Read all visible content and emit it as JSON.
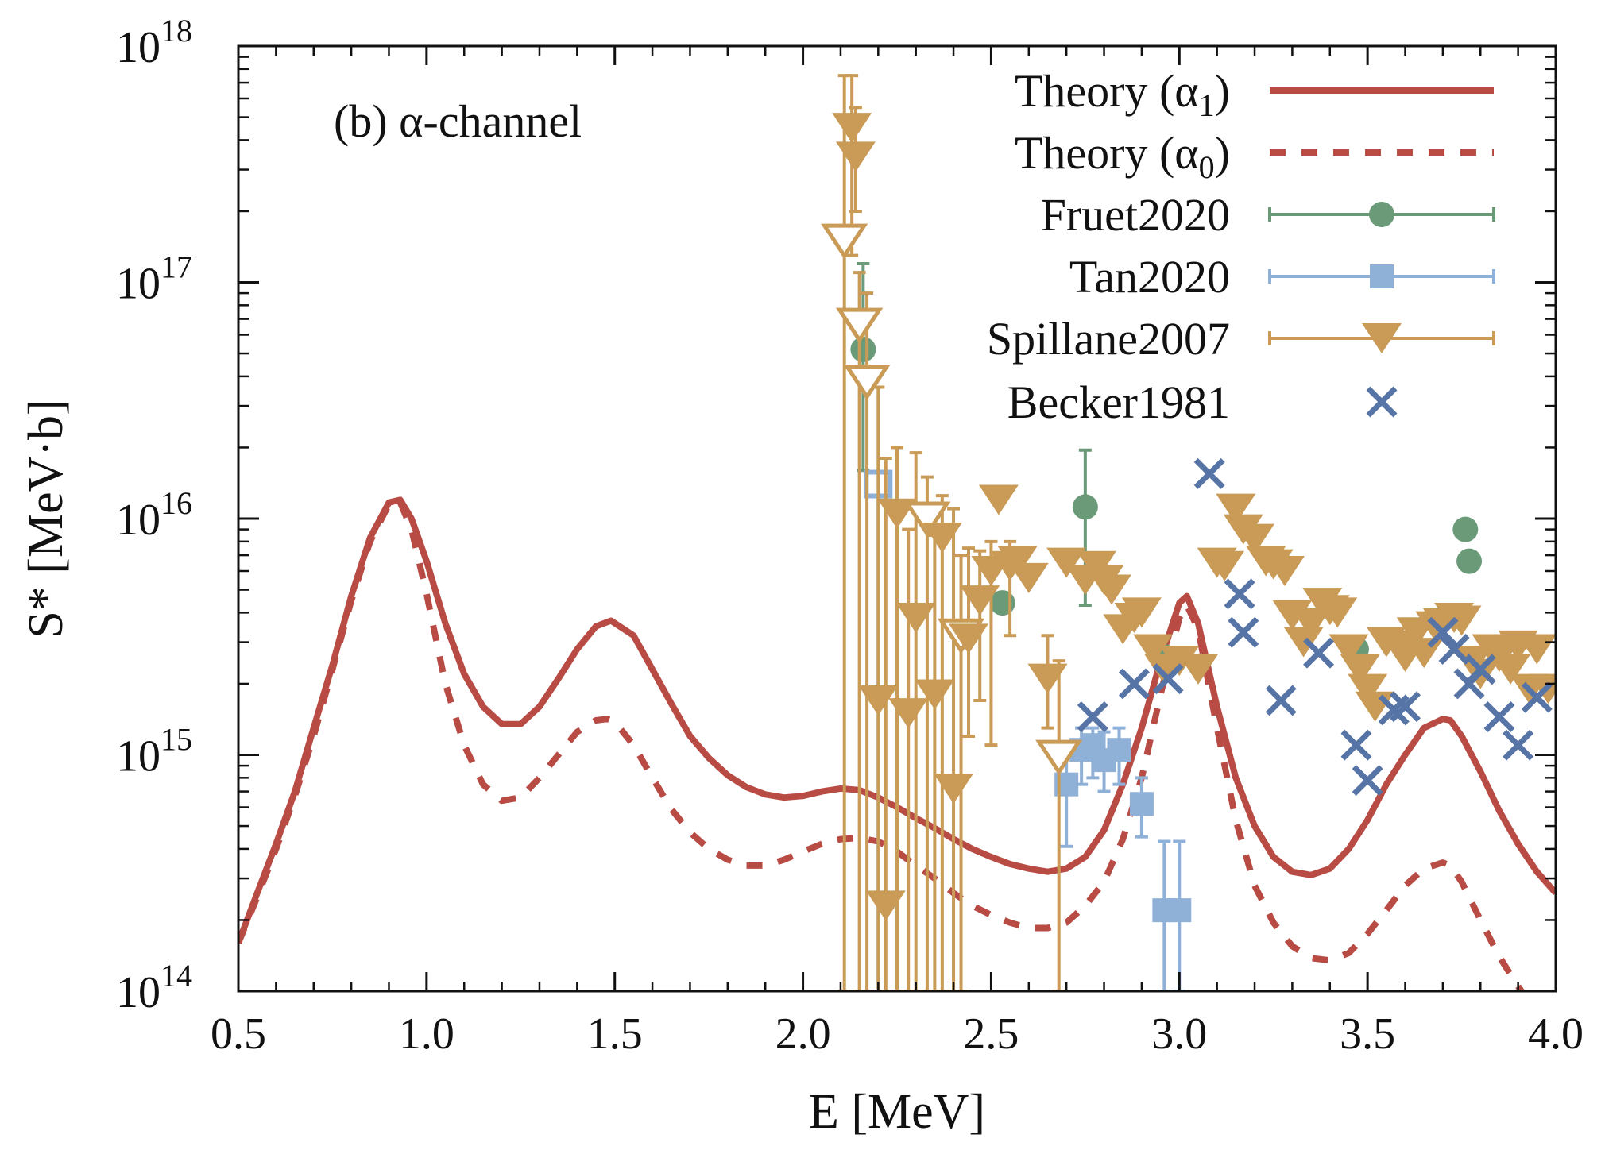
{
  "chart_data": {
    "type": "scatter",
    "annotation": "(b) α-channel",
    "xlabel": "E  [MeV]",
    "ylabel": "S* [MeV·b]",
    "xlim": [
      0.5,
      4.0
    ],
    "ylim": [
      100000000000000.0,
      1e+18
    ],
    "yscale": "log",
    "grid": false,
    "legend_position": "top-right",
    "x_ticks": [
      "0.5",
      "1.0",
      "1.5",
      "2.0",
      "2.5",
      "3.0",
      "3.5",
      "4.0"
    ],
    "y_ticks": [
      {
        "base": "10",
        "exp": "14",
        "value": 100000000000000.0
      },
      {
        "base": "10",
        "exp": "15",
        "value": 1000000000000000.0
      },
      {
        "base": "10",
        "exp": "16",
        "value": 1e+16
      },
      {
        "base": "10",
        "exp": "17",
        "value": 1e+17
      },
      {
        "base": "10",
        "exp": "18",
        "value": 1e+18
      }
    ],
    "colors": {
      "theory": "#b84b44",
      "fruet": "#6b9a78",
      "tan": "#8fb1d8",
      "spillane": "#c99b57",
      "becker": "#5674a6"
    },
    "series": [
      {
        "name": "Theory  (α",
        "sub": "1",
        "kind": "line",
        "style": "solid",
        "x": [
          0.5,
          0.55,
          0.6,
          0.65,
          0.7,
          0.75,
          0.8,
          0.85,
          0.9,
          0.93,
          0.96,
          1.0,
          1.05,
          1.1,
          1.15,
          1.2,
          1.25,
          1.3,
          1.35,
          1.4,
          1.45,
          1.49,
          1.55,
          1.6,
          1.65,
          1.7,
          1.75,
          1.8,
          1.85,
          1.9,
          1.95,
          2.0,
          2.05,
          2.1,
          2.15,
          2.2,
          2.25,
          2.3,
          2.35,
          2.4,
          2.45,
          2.5,
          2.55,
          2.6,
          2.65,
          2.7,
          2.75,
          2.8,
          2.85,
          2.9,
          2.95,
          3.0,
          3.02,
          3.05,
          3.1,
          3.15,
          3.2,
          3.25,
          3.3,
          3.35,
          3.4,
          3.45,
          3.5,
          3.55,
          3.6,
          3.65,
          3.7,
          3.72,
          3.75,
          3.8,
          3.85,
          3.9,
          3.95,
          4.0
        ],
        "y": [
          160000000000000.0,
          260000000000000.0,
          420000000000000.0,
          700000000000000.0,
          1300000000000000.0,
          2400000000000000.0,
          4700000000000000.0,
          8300000000000000.0,
          1.17e+16,
          1.2e+16,
          1e+16,
          6600000000000000.0,
          3600000000000000.0,
          2200000000000000.0,
          1600000000000000.0,
          1350000000000000.0,
          1350000000000000.0,
          1600000000000000.0,
          2100000000000000.0,
          2800000000000000.0,
          3500000000000000.0,
          3700000000000000.0,
          3200000000000000.0,
          2300000000000000.0,
          1650000000000000.0,
          1200000000000000.0,
          970000000000000.0,
          820000000000000.0,
          730000000000000.0,
          680000000000000.0,
          660000000000000.0,
          670000000000000.0,
          700000000000000.0,
          720000000000000.0,
          710000000000000.0,
          660000000000000.0,
          600000000000000.0,
          540000000000000.0,
          490000000000000.0,
          440000000000000.0,
          400000000000000.0,
          370000000000000.0,
          345000000000000.0,
          330000000000000.0,
          320000000000000.0,
          330000000000000.0,
          370000000000000.0,
          480000000000000.0,
          750000000000000.0,
          1300000000000000.0,
          2500000000000000.0,
          4400000000000000.0,
          4700000000000000.0,
          3600000000000000.0,
          1600000000000000.0,
          800000000000000.0,
          500000000000000.0,
          370000000000000.0,
          320000000000000.0,
          310000000000000.0,
          330000000000000.0,
          400000000000000.0,
          530000000000000.0,
          750000000000000.0,
          1000000000000000.0,
          1300000000000000.0,
          1420000000000000.0,
          1400000000000000.0,
          1200000000000000.0,
          850000000000000.0,
          580000000000000.0,
          420000000000000.0,
          320000000000000.0,
          260000000000000.0
        ]
      },
      {
        "name": "Theory  (α",
        "sub": "0",
        "kind": "line",
        "style": "dashed",
        "x": [
          0.5,
          0.55,
          0.6,
          0.65,
          0.7,
          0.75,
          0.8,
          0.85,
          0.9,
          0.93,
          0.96,
          1.0,
          1.05,
          1.1,
          1.15,
          1.2,
          1.25,
          1.3,
          1.35,
          1.4,
          1.45,
          1.48,
          1.5,
          1.55,
          1.6,
          1.65,
          1.7,
          1.75,
          1.8,
          1.85,
          1.9,
          1.95,
          2.0,
          2.05,
          2.1,
          2.15,
          2.2,
          2.25,
          2.3,
          2.35,
          2.4,
          2.45,
          2.5,
          2.55,
          2.6,
          2.65,
          2.7,
          2.75,
          2.8,
          2.85,
          2.9,
          2.95,
          3.0,
          3.02,
          3.05,
          3.1,
          3.15,
          3.2,
          3.25,
          3.3,
          3.35,
          3.4,
          3.45,
          3.5,
          3.55,
          3.6,
          3.65,
          3.7,
          3.72,
          3.75,
          3.8,
          3.85,
          3.9,
          3.95
        ],
        "y": [
          160000000000000.0,
          250000000000000.0,
          400000000000000.0,
          670000000000000.0,
          1200000000000000.0,
          2300000000000000.0,
          4500000000000000.0,
          8000000000000000.0,
          1.15e+16,
          1.17e+16,
          9000000000000000.0,
          4800000000000000.0,
          2000000000000000.0,
          1100000000000000.0,
          750000000000000.0,
          640000000000000.0,
          660000000000000.0,
          800000000000000.0,
          1000000000000000.0,
          1250000000000000.0,
          1400000000000000.0,
          1420000000000000.0,
          1380000000000000.0,
          1100000000000000.0,
          800000000000000.0,
          590000000000000.0,
          470000000000000.0,
          400000000000000.0,
          360000000000000.0,
          340000000000000.0,
          340000000000000.0,
          360000000000000.0,
          390000000000000.0,
          420000000000000.0,
          440000000000000.0,
          445000000000000.0,
          430000000000000.0,
          390000000000000.0,
          340000000000000.0,
          300000000000000.0,
          260000000000000.0,
          230000000000000.0,
          210000000000000.0,
          195000000000000.0,
          185000000000000.0,
          185000000000000.0,
          195000000000000.0,
          230000000000000.0,
          290000000000000.0,
          440000000000000.0,
          800000000000000.0,
          1800000000000000.0,
          3800000000000000.0,
          4300000000000000.0,
          3400000000000000.0,
          1300000000000000.0,
          530000000000000.0,
          280000000000000.0,
          195000000000000.0,
          155000000000000.0,
          138000000000000.0,
          135000000000000.0,
          145000000000000.0,
          175000000000000.0,
          220000000000000.0,
          280000000000000.0,
          330000000000000.0,
          350000000000000.0,
          340000000000000.0,
          290000000000000.0,
          200000000000000.0,
          140000000000000.0,
          105000000000000.0,
          80000000000000.0
        ]
      },
      {
        "name": "Fruet2020",
        "kind": "errorbar",
        "marker": "circle",
        "x": [
          2.16,
          2.53,
          2.75,
          2.96,
          3.47,
          3.76,
          3.77
        ],
        "y": [
          5.2e+16,
          4400000000000000.0,
          1.12e+16,
          2600000000000000.0,
          2800000000000000.0,
          9000000000000000.0,
          6600000000000000.0
        ],
        "err_lo": [
          1.6e+16,
          null,
          4300000000000000.0,
          null,
          null,
          null,
          null
        ],
        "err_hi": [
          1.2e+17,
          null,
          1.95e+16,
          null,
          null,
          null,
          null
        ]
      },
      {
        "name": "Tan2020",
        "kind": "errorbar",
        "marker": "square",
        "x": [
          2.2,
          2.7,
          2.74,
          2.77,
          2.8,
          2.84,
          2.9,
          2.96,
          3.0
        ],
        "y": [
          1.4e+16,
          750000000000000.0,
          1050000000000000.0,
          1100000000000000.0,
          950000000000000.0,
          1050000000000000.0,
          620000000000000.0,
          220000000000000.0,
          220000000000000.0
        ],
        "open": [
          true,
          false,
          false,
          false,
          false,
          false,
          false,
          false,
          false
        ],
        "err_lo": [
          100000000000000.0,
          410000000000000.0,
          750000000000000.0,
          800000000000000.0,
          700000000000000.0,
          750000000000000.0,
          450000000000000.0,
          100000000000000.0,
          100000000000000.0
        ],
        "err_hi": [
          1.4e+16,
          1000000000000000.0,
          1300000000000000.0,
          1300000000000000.0,
          1250000000000000.0,
          1300000000000000.0,
          800000000000000.0,
          430000000000000.0,
          430000000000000.0
        ]
      },
      {
        "name": "Spillane2007",
        "kind": "errorbar",
        "marker": "triangle-down",
        "x": [
          2.11,
          2.13,
          2.14,
          2.15,
          2.17,
          2.2,
          2.22,
          2.25,
          2.28,
          2.3,
          2.33,
          2.35,
          2.37,
          2.4,
          2.42,
          2.44,
          2.47,
          2.5,
          2.52,
          2.55,
          2.57,
          2.6,
          2.65,
          2.68,
          2.7,
          2.75,
          2.78,
          2.8,
          2.82,
          2.85,
          2.88,
          2.9,
          2.93,
          2.96,
          3.0,
          3.05,
          3.1,
          3.12,
          3.15,
          3.17,
          3.2,
          3.23,
          3.25,
          3.28,
          3.3,
          3.33,
          3.35,
          3.38,
          3.4,
          3.42,
          3.45,
          3.48,
          3.5,
          3.52,
          3.55,
          3.58,
          3.6,
          3.63,
          3.65,
          3.68,
          3.7,
          3.73,
          3.75,
          3.78,
          3.8,
          3.83,
          3.85,
          3.88,
          3.9,
          3.93,
          3.95,
          3.98
        ],
        "y": [
          1.5e+17,
          4.5e+17,
          3.4e+17,
          6.6e+16,
          3.8e+16,
          1700000000000000.0,
          230000000000000.0,
          1.05e+16,
          1500000000000000.0,
          3800000000000000.0,
          1e+16,
          1800000000000000.0,
          8300000000000000.0,
          720000000000000.0,
          3200000000000000.0,
          3100000000000000.0,
          4500000000000000.0,
          6000000000000000.0,
          1.2e+16,
          6300000000000000.0,
          6600000000000000.0,
          5600000000000000.0,
          2100000000000000.0,
          980000000000000.0,
          6500000000000000.0,
          5500000000000000.0,
          6300000000000000.0,
          5500000000000000.0,
          5000000000000000.0,
          3400000000000000.0,
          3800000000000000.0,
          4000000000000000.0,
          2800000000000000.0,
          2300000000000000.0,
          2500000000000000.0,
          2300000000000000.0,
          6500000000000000.0,
          6300000000000000.0,
          1.1e+16,
          9000000000000000.0,
          8200000000000000.0,
          6600000000000000.0,
          6400000000000000.0,
          6000000000000000.0,
          3900000000000000.0,
          3000000000000000.0,
          3600000000000000.0,
          4400000000000000.0,
          4100000000000000.0,
          4000000000000000.0,
          2800000000000000.0,
          2300000000000000.0,
          1900000000000000.0,
          1600000000000000.0,
          3000000000000000.0,
          2900000000000000.0,
          2600000000000000.0,
          3300000000000000.0,
          2700000000000000.0,
          3500000000000000.0,
          3600000000000000.0,
          3800000000000000.0,
          3700000000000000.0,
          2500000000000000.0,
          2200000000000000.0,
          2800000000000000.0,
          2600000000000000.0,
          2300000000000000.0,
          2900000000000000.0,
          1900000000000000.0,
          2800000000000000.0,
          1900000000000000.0
        ],
        "open": [
          true,
          false,
          false,
          true,
          true,
          false,
          false,
          false,
          false,
          false,
          true,
          false,
          false,
          false,
          true,
          false,
          false,
          false,
          false,
          false,
          false,
          false,
          false,
          true,
          false,
          false,
          false,
          false,
          false,
          false,
          false,
          false,
          false,
          false,
          false,
          false,
          false,
          false,
          false,
          false,
          false,
          false,
          false,
          false,
          false,
          false,
          false,
          false,
          false,
          false,
          false,
          false,
          false,
          false,
          false,
          false,
          false,
          false,
          false,
          false,
          false,
          false,
          false,
          false,
          false,
          false,
          false,
          false,
          false,
          false,
          false,
          false
        ],
        "err_lo": [
          100000000000000.0,
          1.3e+17,
          2e+17,
          100000000000000.0,
          100000000000000.0,
          100000000000000.0,
          100000000000000.0,
          100000000000000.0,
          100000000000000.0,
          100000000000000.0,
          100000000000000.0,
          100000000000000.0,
          100000000000000.0,
          100000000000000.0,
          100000000000000.0,
          1200000000000000.0,
          1700000000000000.0,
          1100000000000000.0,
          null,
          3200000000000000.0,
          null,
          null,
          1300000000000000.0,
          100000000000000.0,
          null,
          null,
          null,
          null,
          null,
          null,
          null,
          null,
          null,
          null,
          null,
          null,
          null,
          null,
          null,
          null,
          null,
          null,
          null,
          null,
          null,
          null,
          null,
          null,
          null,
          null,
          null,
          null,
          null,
          null,
          null,
          null,
          null,
          null,
          null,
          null,
          null,
          null,
          null,
          null,
          null,
          null,
          null,
          null,
          null,
          null,
          null,
          null
        ],
        "err_hi": [
          7.5e+17,
          7.5e+17,
          5.5e+17,
          1.1e+17,
          9e+16,
          3.6e+16,
          1.8e+16,
          2e+16,
          9000000000000000.0,
          1.9e+16,
          1.5e+16,
          8500000000000000.0,
          1.25e+16,
          1.1e+16,
          7000000000000000.0,
          7500000000000000.0,
          7300000000000000.0,
          8000000000000000.0,
          null,
          8000000000000000.0,
          null,
          null,
          3200000000000000.0,
          2500000000000000.0,
          null,
          null,
          null,
          null,
          null,
          null,
          null,
          null,
          null,
          null,
          null,
          null,
          null,
          null,
          null,
          null,
          null,
          null,
          null,
          null,
          null,
          null,
          null,
          null,
          null,
          null,
          null,
          null,
          null,
          null,
          null,
          null,
          null,
          null,
          null,
          null,
          null,
          null,
          null,
          null,
          null,
          null,
          null,
          null,
          null,
          null,
          null,
          null
        ]
      },
      {
        "name": "Becker1981",
        "kind": "scatter",
        "marker": "x",
        "x": [
          2.77,
          2.88,
          2.97,
          3.08,
          3.16,
          3.17,
          3.27,
          3.37,
          3.47,
          3.5,
          3.57,
          3.6,
          3.7,
          3.73,
          3.77,
          3.8,
          3.85,
          3.9,
          3.95
        ],
        "y": [
          1450000000000000.0,
          2000000000000000.0,
          2100000000000000.0,
          1.55e+16,
          4800000000000000.0,
          3300000000000000.0,
          1700000000000000.0,
          2700000000000000.0,
          1100000000000000.0,
          780000000000000.0,
          1550000000000000.0,
          1600000000000000.0,
          3300000000000000.0,
          2800000000000000.0,
          2000000000000000.0,
          2300000000000000.0,
          1450000000000000.0,
          1100000000000000.0,
          1750000000000000.0
        ]
      }
    ]
  }
}
